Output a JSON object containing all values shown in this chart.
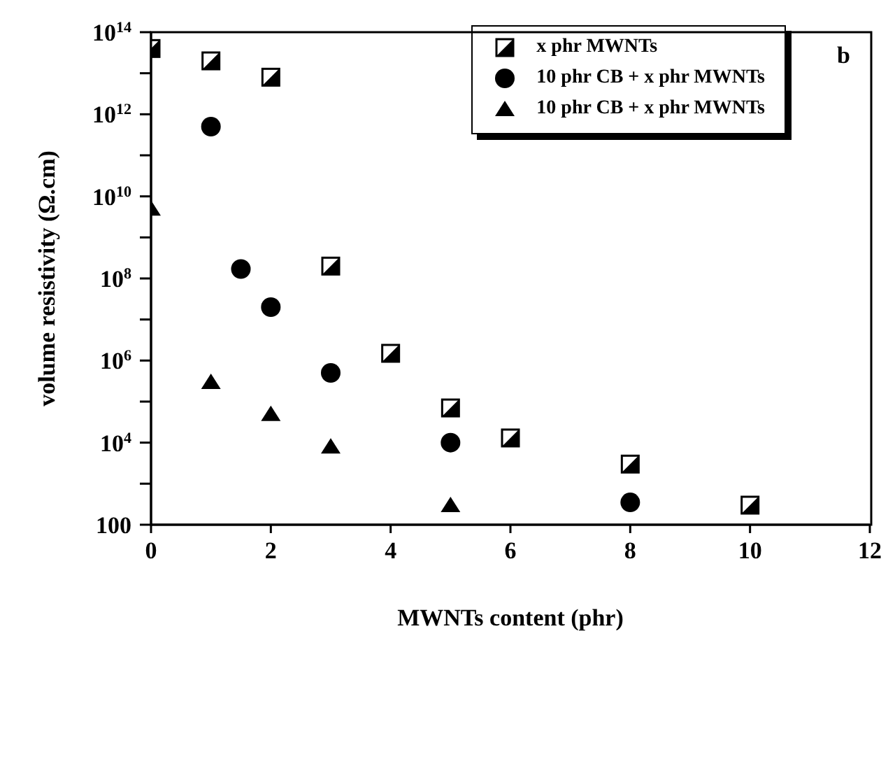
{
  "chart_data": {
    "type": "scatter",
    "xlabel": "MWNTs content (phr)",
    "ylabel": "volume resistivity (Ω.cm)",
    "annotations": [
      "b"
    ],
    "log": "y",
    "xlim": [
      0,
      12
    ],
    "xticks": [
      0,
      2,
      4,
      6,
      8,
      10,
      12
    ],
    "ylim": [
      100,
      100000000000000
    ],
    "yticks": [
      100,
      {
        "value": 1000,
        "label": null
      },
      {
        "value": 10000,
        "label": "10$^{4}$"
      },
      {
        "value": 100000,
        "label": null
      },
      {
        "value": 1000000,
        "label": "10$^{6}$"
      },
      {
        "value": 10000000,
        "label": null
      },
      {
        "value": 100000000,
        "label": "10$^{8}$"
      },
      {
        "value": 1000000000,
        "label": null
      },
      {
        "value": 10000000000,
        "label": "10$^{10}$"
      },
      {
        "value": 100000000000,
        "label": null
      },
      {
        "value": 1000000000000,
        "label": "10$^{12}$"
      },
      {
        "value": 10000000000000,
        "label": null
      },
      {
        "value": 100000000000000,
        "label": "10$^{14}$"
      }
    ],
    "grid": false,
    "legend": "top right",
    "series": [
      {
        "name": "x phr MWNTs",
        "color": "#000000",
        "marker": "square",
        "x": [
          0,
          1,
          2,
          3,
          4,
          5,
          6,
          8,
          10
        ],
        "values": [
          40000000000000,
          20000000000000,
          8000000000000,
          200000000,
          1500000,
          70000,
          13000,
          3000,
          300
        ]
      },
      {
        "name": "10 phr CB + x phr MWNTs",
        "color": "#000000",
        "marker": "circle",
        "x": [
          1,
          1.5,
          2,
          3,
          5,
          8
        ],
        "values": [
          500000000000,
          170000000,
          20000000,
          500000,
          10000,
          350
        ]
      },
      {
        "name": "10 phr CB + x phr MWNTs",
        "color": "#000000",
        "marker": "triangle",
        "x": [
          0,
          1,
          2,
          3,
          5
        ],
        "values": [
          5000000000,
          300000,
          50000,
          8000,
          300
        ]
      }
    ]
  }
}
